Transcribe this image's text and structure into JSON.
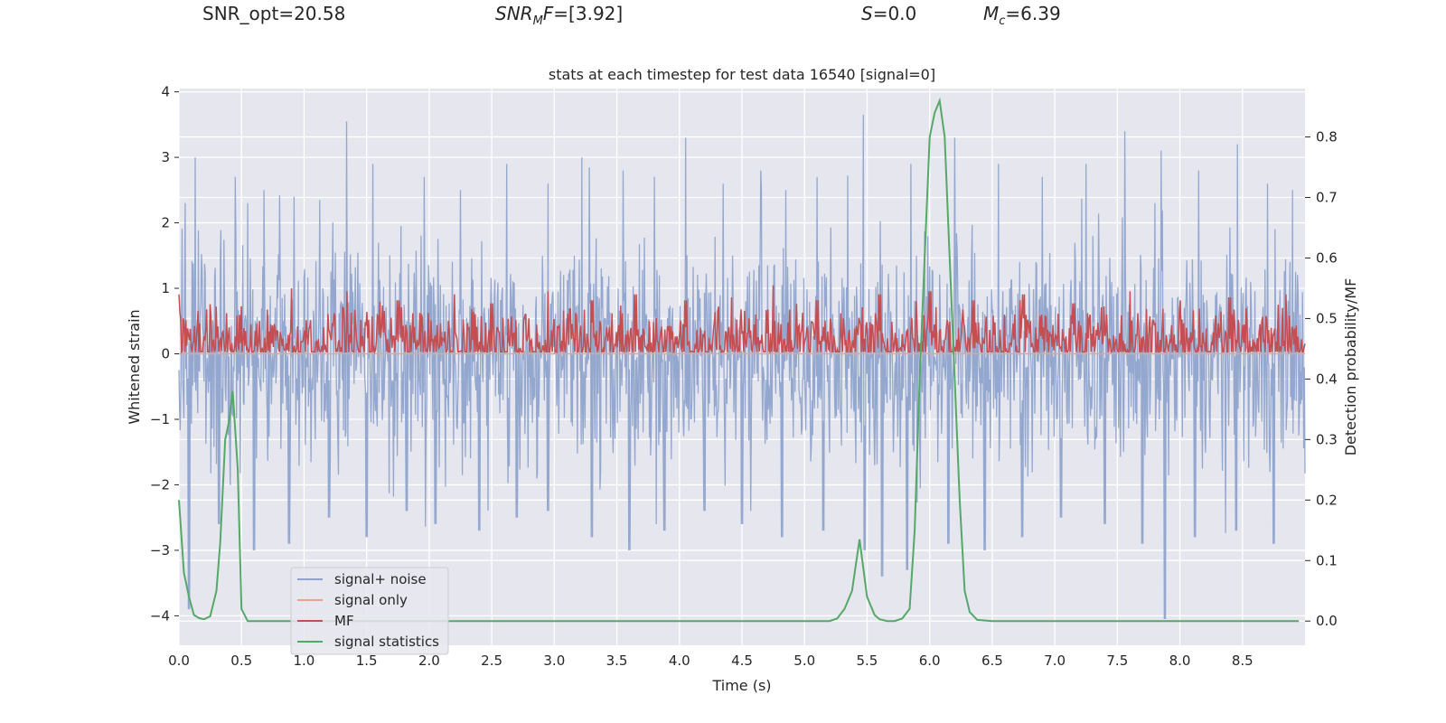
{
  "header": {
    "snr_opt": "SNR_opt=20.58",
    "snr_mf_name": "SNR",
    "snr_mf_sub": "M",
    "snr_mf_tail": "F",
    "snr_mf_value": "=[3.92]",
    "s_name": "S",
    "s_value": "=0.0",
    "mc_name": "M",
    "mc_sub": "c",
    "mc_value": "=6.39"
  },
  "chart_data": {
    "type": "line",
    "title": "stats at each timestep for test data 16540 [signal=0]",
    "xlabel": "Time (s)",
    "ylabel": "Whitened strain",
    "y2label": "Detection probability/MF",
    "xlim": [
      0,
      9.0
    ],
    "ylim": [
      -4.45,
      4.05
    ],
    "y2lim": [
      -0.04,
      0.88
    ],
    "xticks": [
      0.0,
      0.5,
      1.0,
      1.5,
      2.0,
      2.5,
      3.0,
      3.5,
      4.0,
      4.5,
      5.0,
      5.5,
      6.0,
      6.5,
      7.0,
      7.5,
      8.0,
      8.5
    ],
    "xtick_labels": [
      "0.0",
      "0.5",
      "1.0",
      "1.5",
      "2.0",
      "2.5",
      "3.0",
      "3.5",
      "4.0",
      "4.5",
      "5.0",
      "5.5",
      "6.0",
      "6.5",
      "7.0",
      "7.5",
      "8.0",
      "8.5"
    ],
    "yticks": [
      -4,
      -3,
      -2,
      -1,
      0,
      1,
      2,
      3,
      4
    ],
    "ytick_labels": [
      "−4",
      "−3",
      "−2",
      "−1",
      "0",
      "1",
      "2",
      "3",
      "4"
    ],
    "y2ticks": [
      0.0,
      0.1,
      0.2,
      0.3,
      0.4,
      0.5,
      0.6,
      0.7,
      0.8
    ],
    "y2tick_labels": [
      "0.0",
      "0.1",
      "0.2",
      "0.3",
      "0.4",
      "0.5",
      "0.6",
      "0.7",
      "0.8"
    ],
    "grid": true,
    "legend_position": "lower-left",
    "series": [
      {
        "name": "signal+ noise",
        "color": "#8fa4cc",
        "axis": "left",
        "description": "dense noisy strain oscillating roughly between -3 and +3",
        "peak_x": [
          0.05,
          0.13,
          0.45,
          0.55,
          0.68,
          0.92,
          1.34,
          1.55,
          1.96,
          2.25,
          2.62,
          2.95,
          3.22,
          3.55,
          3.8,
          4.05,
          4.35,
          4.65,
          4.85,
          5.1,
          5.47,
          5.85,
          6.2,
          6.55,
          6.9,
          7.25,
          7.56,
          7.85,
          8.15,
          8.46,
          8.7,
          8.9
        ],
        "peak_y": [
          2.3,
          3.0,
          2.7,
          2.3,
          2.5,
          2.4,
          3.55,
          2.9,
          2.7,
          2.5,
          2.9,
          2.6,
          3.0,
          2.8,
          2.7,
          3.3,
          2.6,
          2.8,
          2.5,
          2.7,
          3.65,
          2.9,
          3.3,
          2.9,
          2.7,
          2.9,
          3.4,
          3.1,
          2.8,
          3.2,
          2.6,
          2.5
        ],
        "trough_x": [
          0.08,
          0.32,
          0.6,
          0.88,
          1.2,
          1.5,
          1.82,
          2.05,
          2.4,
          2.7,
          2.95,
          3.3,
          3.6,
          3.88,
          4.2,
          4.5,
          4.82,
          5.15,
          5.48,
          5.62,
          5.82,
          6.15,
          6.44,
          6.74,
          7.05,
          7.4,
          7.7,
          7.88,
          8.12,
          8.45,
          8.75
        ],
        "trough_y": [
          -3.9,
          -2.6,
          -3.0,
          -2.9,
          -2.5,
          -2.8,
          -2.4,
          -2.6,
          -2.7,
          -2.5,
          -2.4,
          -2.8,
          -3.0,
          -2.7,
          -2.4,
          -2.6,
          -2.8,
          -2.7,
          -3.0,
          -3.4,
          -3.3,
          -2.9,
          -3.0,
          -2.8,
          -2.5,
          -2.6,
          -2.9,
          -4.05,
          -2.8,
          -2.7,
          -2.9
        ]
      },
      {
        "name": "signal only",
        "color": "#e8a48a",
        "axis": "left",
        "x": [
          0,
          9.0
        ],
        "y": [
          0,
          0
        ]
      },
      {
        "name": "MF",
        "color": "#c44e52",
        "axis": "right",
        "description": "matched-filter output fluctuating around 0.46 on the right axis",
        "baseline": 0.46,
        "spread": 0.045,
        "peak_x": [
          0.0,
          0.5,
          0.9,
          1.34,
          1.75,
          2.2,
          2.5,
          2.95,
          3.3,
          3.65,
          4.05,
          4.42,
          4.75,
          5.1,
          5.6,
          6.0,
          6.35,
          6.75,
          7.15,
          7.6,
          8.0,
          8.4,
          8.85
        ],
        "peak_y": [
          0.54,
          0.52,
          0.55,
          0.545,
          0.53,
          0.54,
          0.525,
          0.545,
          0.53,
          0.54,
          0.53,
          0.535,
          0.555,
          0.53,
          0.54,
          0.545,
          0.53,
          0.54,
          0.525,
          0.545,
          0.53,
          0.535,
          0.54
        ]
      },
      {
        "name": "signal statistics",
        "color": "#55a868",
        "axis": "right",
        "x": [
          0.0,
          0.04,
          0.08,
          0.12,
          0.16,
          0.2,
          0.25,
          0.3,
          0.33,
          0.37,
          0.4,
          0.43,
          0.47,
          0.5,
          0.55,
          0.6,
          1.0,
          2.0,
          3.0,
          4.0,
          5.0,
          5.2,
          5.26,
          5.32,
          5.38,
          5.44,
          5.5,
          5.56,
          5.6,
          5.66,
          5.72,
          5.78,
          5.84,
          5.88,
          5.92,
          5.96,
          6.0,
          6.04,
          6.08,
          6.12,
          6.16,
          6.2,
          6.24,
          6.28,
          6.32,
          6.38,
          6.5,
          7.0,
          8.0,
          8.95
        ],
        "y": [
          0.2,
          0.08,
          0.04,
          0.01,
          0.005,
          0.003,
          0.008,
          0.05,
          0.13,
          0.3,
          0.33,
          0.38,
          0.25,
          0.02,
          0.0,
          0.0,
          0.0,
          0.0,
          0.0,
          0.0,
          0.0,
          0.0,
          0.004,
          0.02,
          0.05,
          0.135,
          0.04,
          0.01,
          0.003,
          0.0,
          0.0,
          0.004,
          0.02,
          0.15,
          0.4,
          0.6,
          0.8,
          0.84,
          0.86,
          0.8,
          0.6,
          0.4,
          0.2,
          0.05,
          0.015,
          0.002,
          0.0,
          0.0,
          0.0,
          0.0
        ]
      }
    ]
  }
}
